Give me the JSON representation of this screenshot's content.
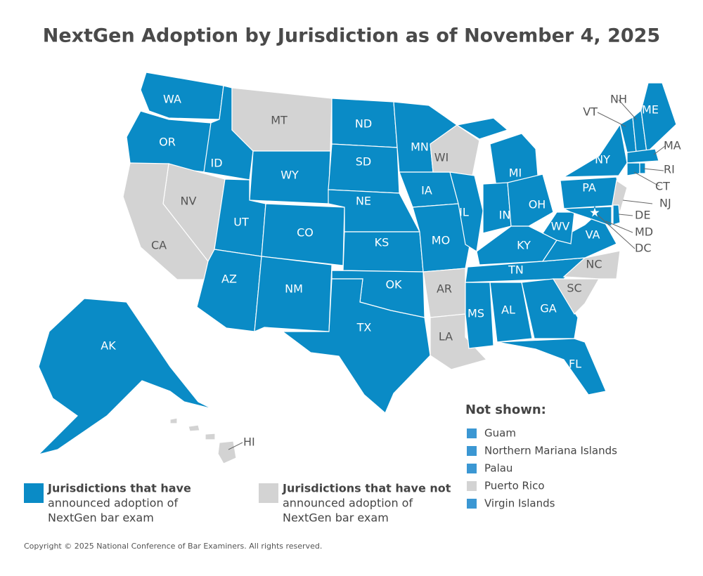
{
  "title": "NextGen Adoption by Jurisdiction as of November 4, 2025",
  "colors": {
    "adopted": "#0a8bc6",
    "not_adopted": "#d3d3d3"
  },
  "states": [
    {
      "label": "WA",
      "adopted": true
    },
    {
      "label": "OR",
      "adopted": true
    },
    {
      "label": "ID",
      "adopted": true
    },
    {
      "label": "MT",
      "adopted": false
    },
    {
      "label": "WY",
      "adopted": true
    },
    {
      "label": "NV",
      "adopted": false
    },
    {
      "label": "CA",
      "adopted": false
    },
    {
      "label": "UT",
      "adopted": true
    },
    {
      "label": "CO",
      "adopted": true
    },
    {
      "label": "AZ",
      "adopted": true
    },
    {
      "label": "NM",
      "adopted": true
    },
    {
      "label": "ND",
      "adopted": true
    },
    {
      "label": "SD",
      "adopted": true
    },
    {
      "label": "NE",
      "adopted": true
    },
    {
      "label": "KS",
      "adopted": true
    },
    {
      "label": "OK",
      "adopted": true
    },
    {
      "label": "TX",
      "adopted": true
    },
    {
      "label": "MN",
      "adopted": true
    },
    {
      "label": "IA",
      "adopted": true
    },
    {
      "label": "MO",
      "adopted": true
    },
    {
      "label": "AR",
      "adopted": false
    },
    {
      "label": "LA",
      "adopted": false
    },
    {
      "label": "WI",
      "adopted": false
    },
    {
      "label": "IL",
      "adopted": true
    },
    {
      "label": "MI",
      "adopted": true
    },
    {
      "label": "IN",
      "adopted": true
    },
    {
      "label": "OH",
      "adopted": true
    },
    {
      "label": "KY",
      "adopted": true
    },
    {
      "label": "TN",
      "adopted": true
    },
    {
      "label": "MS",
      "adopted": true
    },
    {
      "label": "AL",
      "adopted": true
    },
    {
      "label": "GA",
      "adopted": true
    },
    {
      "label": "FL",
      "adopted": true
    },
    {
      "label": "SC",
      "adopted": false
    },
    {
      "label": "NC",
      "adopted": false
    },
    {
      "label": "VA",
      "adopted": true
    },
    {
      "label": "WV",
      "adopted": true
    },
    {
      "label": "PA",
      "adopted": true
    },
    {
      "label": "NY",
      "adopted": true
    },
    {
      "label": "NJ",
      "adopted": false
    },
    {
      "label": "DE",
      "adopted": true
    },
    {
      "label": "MD",
      "adopted": true
    },
    {
      "label": "VT",
      "adopted": true
    },
    {
      "label": "NH",
      "adopted": true
    },
    {
      "label": "ME",
      "adopted": true
    },
    {
      "label": "MA",
      "adopted": true
    },
    {
      "label": "CT",
      "adopted": true
    },
    {
      "label": "RI",
      "adopted": true
    },
    {
      "label": "AK",
      "adopted": true
    },
    {
      "label": "HI",
      "adopted": false
    },
    {
      "label": "DC",
      "adopted": true
    }
  ],
  "legend": [
    {
      "adopted": true,
      "lines": [
        "Jurisdictions that have",
        "announced adoption of",
        "NextGen bar exam"
      ]
    },
    {
      "adopted": false,
      "lines": [
        "Jurisdictions that have not",
        "announced adoption of",
        "NextGen bar exam"
      ]
    }
  ],
  "not_shown": {
    "heading": "Not shown:",
    "items": [
      {
        "label": "Guam",
        "adopted": true
      },
      {
        "label": "Northern Mariana Islands",
        "adopted": true
      },
      {
        "label": "Palau",
        "adopted": true
      },
      {
        "label": "Puerto Rico",
        "adopted": false
      },
      {
        "label": "Virgin Islands",
        "adopted": true
      }
    ]
  },
  "copyright": "Copyright © 2025 National Conference of Bar Examiners. All rights reserved."
}
